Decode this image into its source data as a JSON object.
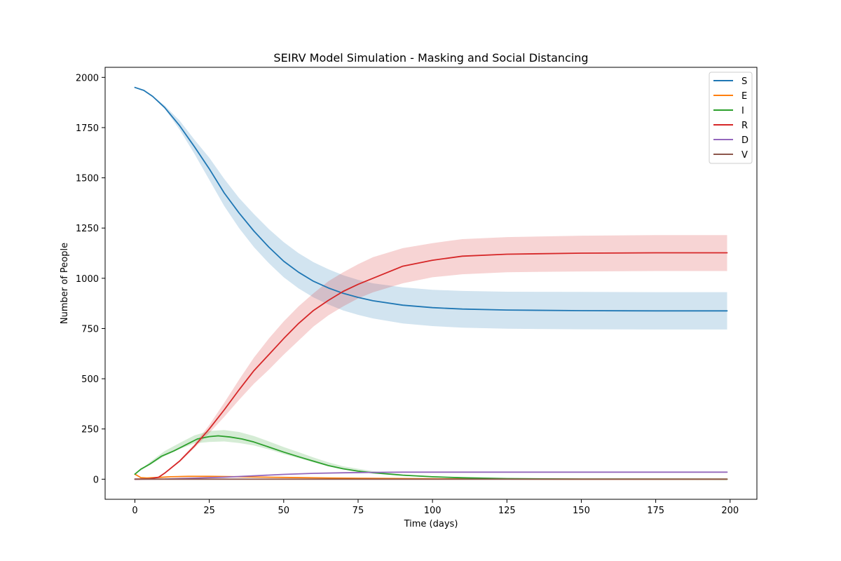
{
  "chart_data": {
    "type": "line",
    "title": "SEIRV Model Simulation - Masking and Social Distancing",
    "xlabel": "Time (days)",
    "ylabel": "Number of People",
    "xlim": [
      -10,
      209
    ],
    "ylim": [
      -100,
      2050
    ],
    "xticks": [
      0,
      25,
      50,
      75,
      100,
      125,
      150,
      175,
      200
    ],
    "yticks": [
      0,
      250,
      500,
      750,
      1000,
      1250,
      1500,
      1750,
      2000
    ],
    "grid": false,
    "legend_position": "top-right",
    "series": [
      {
        "name": "S",
        "color": "#1f77b4",
        "x": [
          0,
          3,
          6,
          10,
          15,
          20,
          25,
          30,
          35,
          40,
          45,
          50,
          55,
          60,
          65,
          70,
          75,
          80,
          90,
          100,
          110,
          125,
          150,
          175,
          199
        ],
        "y": [
          1950,
          1935,
          1905,
          1850,
          1760,
          1655,
          1545,
          1425,
          1325,
          1235,
          1155,
          1085,
          1030,
          985,
          952,
          925,
          905,
          888,
          866,
          854,
          847,
          842,
          839,
          838,
          838
        ],
        "band": [
          0,
          3,
          6,
          10,
          15,
          20,
          25,
          30,
          35,
          40,
          45,
          50,
          55,
          60,
          65,
          70,
          75,
          80,
          90,
          100,
          110,
          125,
          150,
          175,
          199
        ],
        "band_lower": [
          1950,
          1935,
          1905,
          1845,
          1740,
          1620,
          1490,
          1360,
          1250,
          1155,
          1075,
          1005,
          950,
          905,
          870,
          840,
          818,
          800,
          775,
          762,
          754,
          749,
          746,
          745,
          745
        ],
        "band_upper": [
          1950,
          1935,
          1908,
          1860,
          1785,
          1690,
          1600,
          1495,
          1400,
          1320,
          1245,
          1180,
          1125,
          1080,
          1045,
          1015,
          992,
          975,
          955,
          943,
          937,
          933,
          932,
          931,
          931
        ]
      },
      {
        "name": "E",
        "color": "#ff7f0e",
        "x": [
          0,
          2,
          4,
          8,
          12,
          18,
          25,
          35,
          50,
          65,
          80,
          100,
          125,
          150,
          199
        ],
        "y": [
          25,
          8,
          6,
          9,
          12,
          14,
          14,
          12,
          9,
          6,
          4,
          2,
          1,
          0,
          0
        ]
      },
      {
        "name": "I",
        "color": "#2ca02c",
        "x": [
          0,
          2,
          5,
          9,
          13,
          17,
          21,
          25,
          28,
          32,
          36,
          40,
          45,
          50,
          55,
          60,
          65,
          70,
          75,
          80,
          90,
          100,
          110,
          125,
          150,
          199
        ],
        "y": [
          25,
          50,
          75,
          115,
          140,
          170,
          200,
          212,
          216,
          210,
          200,
          185,
          160,
          135,
          112,
          90,
          68,
          52,
          40,
          32,
          20,
          12,
          7,
          3,
          1,
          0
        ],
        "band": [
          0,
          5,
          10,
          15,
          20,
          25,
          30,
          35,
          40,
          45,
          50,
          55,
          60,
          65,
          70,
          80,
          90,
          100,
          125,
          150,
          199
        ],
        "band_lower": [
          25,
          70,
          115,
          150,
          178,
          185,
          188,
          180,
          168,
          148,
          125,
          105,
          84,
          64,
          48,
          30,
          17,
          9,
          2,
          0,
          0
        ],
        "band_upper": [
          25,
          85,
          140,
          180,
          218,
          240,
          245,
          235,
          215,
          188,
          160,
          135,
          108,
          84,
          64,
          40,
          24,
          15,
          5,
          2,
          0
        ]
      },
      {
        "name": "R",
        "color": "#d62728",
        "x": [
          0,
          5,
          8,
          10,
          15,
          20,
          25,
          30,
          35,
          40,
          45,
          50,
          55,
          60,
          65,
          70,
          75,
          80,
          90,
          100,
          110,
          125,
          150,
          175,
          199
        ],
        "y": [
          0,
          2,
          10,
          30,
          90,
          165,
          250,
          345,
          445,
          540,
          620,
          700,
          775,
          840,
          890,
          935,
          970,
          1000,
          1060,
          1090,
          1110,
          1120,
          1125,
          1127,
          1127
        ],
        "band": [
          0,
          5,
          8,
          10,
          15,
          20,
          25,
          30,
          35,
          40,
          45,
          50,
          55,
          60,
          65,
          70,
          75,
          80,
          90,
          100,
          110,
          125,
          150,
          175,
          199
        ],
        "band_lower": [
          0,
          2,
          10,
          28,
          85,
          155,
          230,
          310,
          395,
          475,
          545,
          620,
          690,
          760,
          815,
          860,
          900,
          930,
          975,
          1005,
          1020,
          1030,
          1034,
          1036,
          1036
        ],
        "band_upper": [
          0,
          2,
          10,
          32,
          95,
          175,
          270,
          380,
          495,
          605,
          700,
          785,
          860,
          925,
          985,
          1030,
          1070,
          1105,
          1150,
          1175,
          1195,
          1205,
          1212,
          1215,
          1215
        ]
      },
      {
        "name": "D",
        "color": "#9467bd",
        "x": [
          0,
          10,
          20,
          30,
          40,
          50,
          60,
          70,
          80,
          90,
          100,
          125,
          150,
          175,
          199
        ],
        "y": [
          0,
          1,
          5,
          10,
          17,
          24,
          29,
          32,
          34,
          35,
          35,
          35,
          35,
          35,
          35
        ]
      },
      {
        "name": "V",
        "color": "#8c564b",
        "x": [
          0,
          50,
          100,
          150,
          199
        ],
        "y": [
          0,
          0,
          0,
          0,
          0
        ]
      }
    ]
  }
}
